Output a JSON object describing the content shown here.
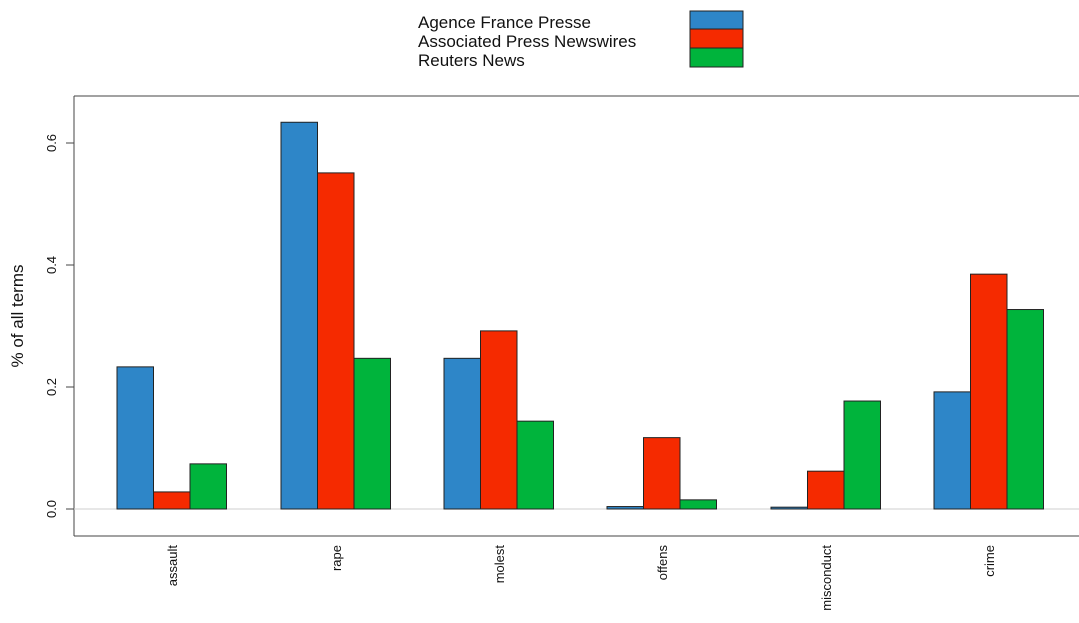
{
  "chart_data": {
    "type": "bar",
    "title": "",
    "xlabel": "",
    "ylabel": "% of all terms",
    "categories": [
      "assault",
      "rape",
      "molest",
      "offens",
      "misconduct",
      "crime"
    ],
    "series": [
      {
        "name": "Agence France Presse",
        "color": "#2e86c8",
        "values": [
          0.233,
          0.634,
          0.247,
          0.004,
          0.003,
          0.192
        ]
      },
      {
        "name": "Associated Press Newswires",
        "color": "#f52a00",
        "values": [
          0.028,
          0.551,
          0.292,
          0.117,
          0.062,
          0.385
        ]
      },
      {
        "name": "Reuters News",
        "color": "#00b43c",
        "values": [
          0.074,
          0.247,
          0.144,
          0.015,
          0.177,
          0.327
        ]
      }
    ],
    "yticks": [
      "0.0",
      "0.2",
      "0.4",
      "0.6"
    ],
    "ylim": [
      0,
      0.65
    ],
    "legend_position": "top-center",
    "grid": false
  }
}
